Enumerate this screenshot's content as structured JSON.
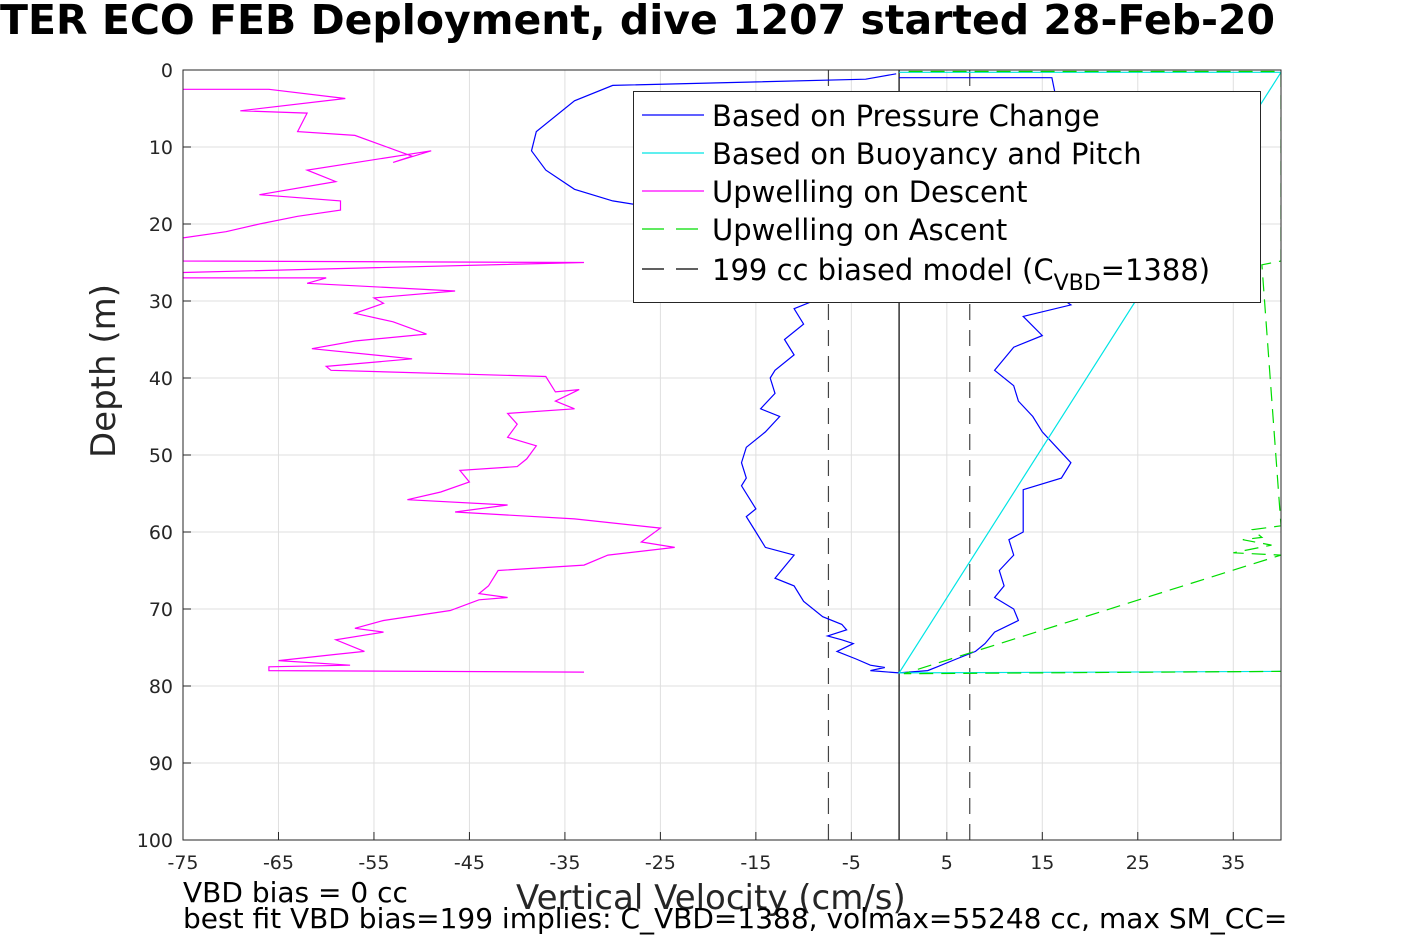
{
  "title": "TER ECO FEB Deployment, dive 1207 started 28-Feb-20",
  "notes": {
    "line1": "VBD bias = 0 cc",
    "line2": "best fit VBD bias=199 implies: C_VBD=1388, volmax=55248 cc, max SM_CC="
  },
  "legend": [
    {
      "label": "Based on Pressure Change",
      "color": "#0000ff",
      "dash": "none"
    },
    {
      "label": "Based on Buoyancy and Pitch",
      "color": "#00e5e5",
      "dash": "none"
    },
    {
      "label": "Upwelling on Descent",
      "color": "#ff00ff",
      "dash": "none"
    },
    {
      "label": "Upwelling on Ascent",
      "color": "#00dd00",
      "dash": "dashed"
    },
    {
      "label_pre": "199 cc biased model (C",
      "label_sub": "VBD",
      "label_post": "=1388)",
      "color": "#000000",
      "dash": "dashed"
    }
  ],
  "chart_data": {
    "type": "line",
    "xlabel": "Vertical Velocity (cm/s)",
    "ylabel": "Depth (m)",
    "xlim": [
      -75,
      40
    ],
    "ylim": [
      0,
      100
    ],
    "y_reversed": true,
    "grid": true,
    "legend_position": "top-right",
    "xticks": [
      -75,
      -65,
      -55,
      -45,
      -35,
      -25,
      -15,
      -5,
      5,
      15,
      25,
      35
    ],
    "yticks": [
      0,
      10,
      20,
      30,
      40,
      50,
      60,
      70,
      80,
      90,
      100
    ],
    "vertical_lines": [
      {
        "x": 0,
        "style": "solid",
        "color": "#000000"
      },
      {
        "x": -7.4,
        "style": "dashed",
        "color": "#444444"
      },
      {
        "x": 7.4,
        "style": "dashed",
        "color": "#444444"
      }
    ],
    "series": [
      {
        "name": "Based on Pressure Change (descent)",
        "color": "#0000ff",
        "points": [
          [
            -0.3,
            0.5
          ],
          [
            -3.5,
            1.2
          ],
          [
            -30,
            2
          ],
          [
            -34,
            4
          ],
          [
            -38,
            8
          ],
          [
            -38.5,
            10.5
          ],
          [
            -37,
            13
          ],
          [
            -34,
            15.5
          ],
          [
            -30,
            17
          ],
          [
            -25,
            18
          ],
          [
            -9,
            30
          ],
          [
            -11,
            31
          ],
          [
            -10,
            33
          ],
          [
            -12,
            35
          ],
          [
            -11,
            37
          ],
          [
            -13,
            39
          ],
          [
            -13.5,
            40
          ],
          [
            -13,
            42
          ],
          [
            -14.5,
            44
          ],
          [
            -12.5,
            45
          ],
          [
            -14,
            47
          ],
          [
            -16,
            49
          ],
          [
            -16.5,
            51
          ],
          [
            -16,
            53
          ],
          [
            -16.5,
            54
          ],
          [
            -15,
            57
          ],
          [
            -16,
            58
          ],
          [
            -15,
            60
          ],
          [
            -14,
            62
          ],
          [
            -11,
            63
          ],
          [
            -13,
            66
          ],
          [
            -11,
            67
          ],
          [
            -10,
            69
          ],
          [
            -8,
            71
          ],
          [
            -6,
            72
          ],
          [
            -5.5,
            72.7
          ],
          [
            -7.5,
            73.5
          ],
          [
            -6,
            74
          ],
          [
            -4.8,
            74.5
          ],
          [
            -6.5,
            75.5
          ],
          [
            -4.5,
            76.5
          ],
          [
            -3,
            77.3
          ],
          [
            -1.5,
            77.6
          ],
          [
            -3,
            78
          ],
          [
            0,
            78.3
          ]
        ]
      },
      {
        "name": "Based on Pressure Change (ascent)",
        "color": "#0000ff",
        "points": [
          [
            0,
            1
          ],
          [
            16,
            1
          ],
          [
            16.5,
            4
          ],
          [
            16,
            10
          ],
          [
            14,
            20
          ],
          [
            13.5,
            25
          ],
          [
            15,
            28
          ],
          [
            18,
            30.5
          ],
          [
            13,
            32
          ],
          [
            15,
            34.5
          ],
          [
            12,
            36
          ],
          [
            10,
            39
          ],
          [
            12,
            41
          ],
          [
            12.5,
            43
          ],
          [
            14,
            45
          ],
          [
            15,
            47
          ],
          [
            16.5,
            49
          ],
          [
            18,
            51
          ],
          [
            17,
            53
          ],
          [
            13,
            54.5
          ],
          [
            13,
            56
          ],
          [
            13,
            60
          ],
          [
            11.5,
            61
          ],
          [
            12,
            63
          ],
          [
            10.5,
            65
          ],
          [
            11,
            67
          ],
          [
            10,
            68.5
          ],
          [
            12,
            70
          ],
          [
            12.5,
            71.5
          ],
          [
            10,
            73
          ],
          [
            9,
            74.5
          ],
          [
            8,
            75.5
          ],
          [
            6,
            76.5
          ],
          [
            4,
            77.5
          ],
          [
            3,
            78
          ],
          [
            0,
            78.3
          ]
        ]
      },
      {
        "name": "Based on Buoyancy and Pitch",
        "color": "#00e5e5",
        "points": [
          [
            0,
            0.3
          ],
          [
            40,
            0.3
          ],
          [
            0,
            78.3
          ],
          [
            40,
            78.1
          ]
        ]
      },
      {
        "name": "Upwelling on Descent",
        "color": "#ff00ff",
        "points": [
          [
            -75,
            2.5
          ],
          [
            -66,
            2.5
          ],
          [
            -58,
            3.7
          ],
          [
            -69,
            5.3
          ],
          [
            -62,
            5.6
          ],
          [
            -63,
            8
          ],
          [
            -57,
            8.5
          ],
          [
            -51,
            11.2
          ],
          [
            -53,
            12
          ],
          [
            -49,
            10.5
          ],
          [
            -62,
            13
          ],
          [
            -59,
            14.5
          ],
          [
            -67,
            16.2
          ],
          [
            -58.5,
            17
          ],
          [
            -58.5,
            18.2
          ],
          [
            -63,
            19
          ],
          [
            -67,
            20
          ],
          [
            -70.5,
            21
          ],
          [
            -75,
            21.8
          ],
          [
            -75,
            24.8
          ],
          [
            -33,
            25
          ],
          [
            -75,
            26.3
          ],
          [
            -75,
            27
          ],
          [
            -60,
            27
          ],
          [
            -62,
            27.7
          ],
          [
            -46.5,
            28.7
          ],
          [
            -55,
            29.6
          ],
          [
            -54,
            30.3
          ],
          [
            -57,
            31.6
          ],
          [
            -53,
            32.7
          ],
          [
            -49.5,
            34.3
          ],
          [
            -57,
            35.2
          ],
          [
            -61.5,
            36.2
          ],
          [
            -51,
            37.5
          ],
          [
            -60,
            38.5
          ],
          [
            -59.5,
            39
          ],
          [
            -37,
            39.8
          ],
          [
            -36,
            41.8
          ],
          [
            -33.5,
            41.5
          ],
          [
            -36,
            43
          ],
          [
            -34,
            44
          ],
          [
            -41,
            44.6
          ],
          [
            -40,
            46
          ],
          [
            -41,
            47.7
          ],
          [
            -38,
            48.8
          ],
          [
            -39,
            50.5
          ],
          [
            -40,
            51.5
          ],
          [
            -46,
            52
          ],
          [
            -45,
            53.5
          ],
          [
            -48,
            54.8
          ],
          [
            -51.5,
            55.8
          ],
          [
            -41,
            56.5
          ],
          [
            -46.5,
            57.4
          ],
          [
            -34,
            58.3
          ],
          [
            -25,
            59.5
          ],
          [
            -27,
            61.3
          ],
          [
            -23.5,
            62
          ],
          [
            -30.5,
            63
          ],
          [
            -33,
            64.3
          ],
          [
            -42,
            65
          ],
          [
            -43,
            67
          ],
          [
            -44,
            68
          ],
          [
            -41,
            68.5
          ],
          [
            -44,
            68.8
          ],
          [
            -47,
            70.2
          ],
          [
            -54,
            71.5
          ],
          [
            -57,
            72.5
          ],
          [
            -54,
            73
          ],
          [
            -59,
            74
          ],
          [
            -56,
            75.5
          ],
          [
            -59,
            75.9
          ],
          [
            -65,
            76.7
          ],
          [
            -57.5,
            77.3
          ],
          [
            -66,
            77.5
          ],
          [
            -66,
            78
          ],
          [
            -33,
            78.2
          ]
        ]
      },
      {
        "name": "Upwelling on Ascent",
        "color": "#00dd00",
        "dashed": true,
        "points": [
          [
            1,
            0.2
          ],
          [
            40,
            0.2
          ],
          [
            40,
            24.8
          ],
          [
            38,
            25.3
          ],
          [
            40,
            59.2
          ],
          [
            37,
            59.7
          ],
          [
            38,
            60.7
          ],
          [
            36,
            61
          ],
          [
            39,
            61.7
          ],
          [
            35,
            62.7
          ],
          [
            40,
            63
          ],
          [
            0.5,
            78.4
          ],
          [
            40,
            78.1
          ]
        ]
      }
    ]
  }
}
